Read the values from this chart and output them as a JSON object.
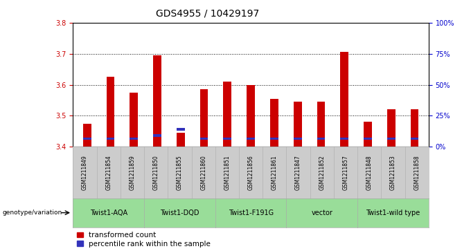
{
  "title": "GDS4955 / 10429197",
  "samples": [
    "GSM1211849",
    "GSM1211854",
    "GSM1211859",
    "GSM1211850",
    "GSM1211855",
    "GSM1211860",
    "GSM1211851",
    "GSM1211856",
    "GSM1211861",
    "GSM1211847",
    "GSM1211852",
    "GSM1211857",
    "GSM1211848",
    "GSM1211853",
    "GSM1211858"
  ],
  "red_values": [
    3.475,
    3.625,
    3.575,
    3.695,
    3.445,
    3.585,
    3.61,
    3.6,
    3.555,
    3.545,
    3.545,
    3.705,
    3.48,
    3.52,
    3.52
  ],
  "blue_bottom": [
    3.422,
    3.422,
    3.422,
    3.432,
    3.452,
    3.422,
    3.422,
    3.422,
    3.422,
    3.422,
    3.422,
    3.422,
    3.422,
    3.422,
    3.422
  ],
  "blue_heights": [
    0.008,
    0.008,
    0.008,
    0.008,
    0.008,
    0.008,
    0.008,
    0.008,
    0.008,
    0.008,
    0.008,
    0.008,
    0.008,
    0.008,
    0.008
  ],
  "ymin": 3.4,
  "ymax": 3.8,
  "y_ticks_left": [
    3.4,
    3.5,
    3.6,
    3.7,
    3.8
  ],
  "y_ticks_right_pct": [
    0,
    25,
    50,
    75,
    100
  ],
  "groups": [
    {
      "label": "Twist1-AQA",
      "start": 0,
      "end": 3
    },
    {
      "label": "Twist1-DQD",
      "start": 3,
      "end": 6
    },
    {
      "label": "Twist1-F191G",
      "start": 6,
      "end": 9
    },
    {
      "label": "vector",
      "start": 9,
      "end": 12
    },
    {
      "label": "Twist1-wild type",
      "start": 12,
      "end": 15
    }
  ],
  "bar_width": 0.35,
  "bar_color_red": "#cc0000",
  "bar_color_blue": "#3333bb",
  "sample_cell_color": "#cccccc",
  "group_cell_color": "#99dd99",
  "ylabel_left_color": "#cc0000",
  "ylabel_right_color": "#0000cc",
  "title_fontsize": 10,
  "tick_fontsize": 7,
  "sample_fontsize": 5.5,
  "group_fontsize": 7,
  "legend_fontsize": 7.5,
  "genotype_label": "genotype/variation"
}
